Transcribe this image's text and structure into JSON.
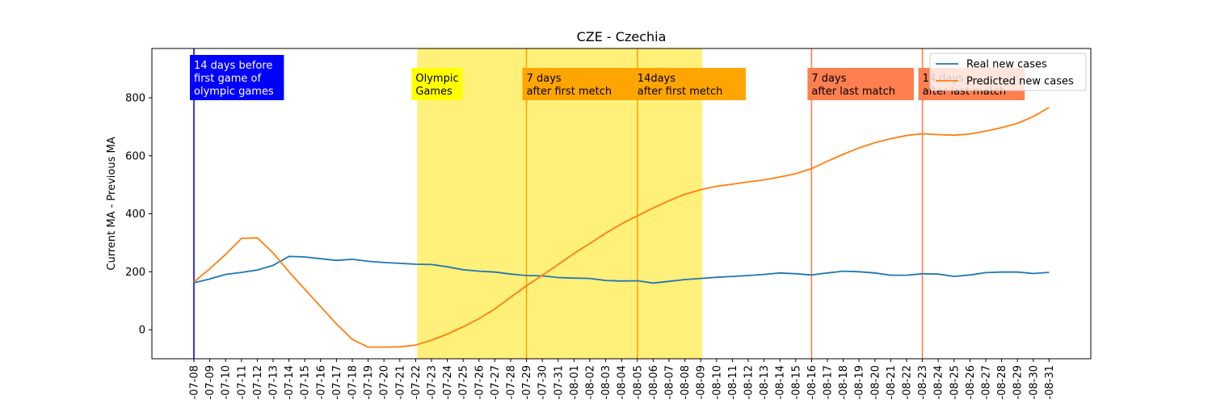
{
  "chart_data": {
    "type": "line",
    "title": "CZE - Czechia",
    "xlabel": "",
    "ylabel": "Current MA - Previous MA",
    "ylim": [
      -100,
      970
    ],
    "yticks": [
      0,
      200,
      400,
      600,
      800
    ],
    "legend_position": "top-right",
    "x": [
      "2021-07-08",
      "2021-07-09",
      "2021-07-10",
      "2021-07-11",
      "2021-07-12",
      "2021-07-13",
      "2021-07-14",
      "2021-07-15",
      "2021-07-16",
      "2021-07-17",
      "2021-07-18",
      "2021-07-19",
      "2021-07-20",
      "2021-07-21",
      "2021-07-22",
      "2021-07-23",
      "2021-07-24",
      "2021-07-25",
      "2021-07-26",
      "2021-07-27",
      "2021-07-28",
      "2021-07-29",
      "2021-07-30",
      "2021-07-31",
      "2021-08-01",
      "2021-08-02",
      "2021-08-03",
      "2021-08-04",
      "2021-08-05",
      "2021-08-06",
      "2021-08-07",
      "2021-08-08",
      "2021-08-09",
      "2021-08-10",
      "2021-08-11",
      "2021-08-12",
      "2021-08-13",
      "2021-08-14",
      "2021-08-15",
      "2021-08-16",
      "2021-08-17",
      "2021-08-18",
      "2021-08-19",
      "2021-08-20",
      "2021-08-21",
      "2021-08-22",
      "2021-08-23",
      "2021-08-24",
      "2021-08-25",
      "2021-08-26",
      "2021-08-27",
      "2021-08-28",
      "2021-08-29",
      "2021-08-30",
      "2021-08-31"
    ],
    "tick_labels": [
      "-07-08",
      "-07-09",
      "-07-10",
      "-07-11",
      "-07-12",
      "-07-13",
      "-07-14",
      "-07-15",
      "-07-16",
      "-07-17",
      "-07-18",
      "-07-19",
      "-07-20",
      "-07-21",
      "-07-22",
      "-07-23",
      "-07-24",
      "-07-25",
      "-07-26",
      "-07-27",
      "-07-28",
      "-07-29",
      "-07-30",
      "-07-31",
      "-08-01",
      "-08-02",
      "-08-03",
      "-08-04",
      "-08-05",
      "-08-06",
      "-08-07",
      "-08-08",
      "-08-09",
      "-08-10",
      "-08-11",
      "-08-12",
      "-08-13",
      "-08-14",
      "-08-15",
      "-08-16",
      "-08-17",
      "-08-18",
      "-08-19",
      "-08-20",
      "-08-21",
      "-08-22",
      "-08-23",
      "-08-24",
      "-08-25",
      "-08-26",
      "-08-27",
      "-08-28",
      "-08-29",
      "-08-30",
      "-08-31"
    ],
    "series": [
      {
        "name": "Real new cases",
        "color": "#1f77b4",
        "values": [
          162,
          175,
          191,
          198,
          206,
          222,
          253,
          251,
          245,
          239,
          243,
          236,
          232,
          229,
          226,
          225,
          217,
          207,
          202,
          199,
          192,
          187,
          186,
          180,
          178,
          177,
          170,
          168,
          169,
          161,
          167,
          173,
          177,
          181,
          184,
          187,
          191,
          196,
          193,
          189,
          196,
          202,
          200,
          196,
          188,
          188,
          193,
          192,
          184,
          189,
          197,
          199,
          199,
          194,
          198
        ]
      },
      {
        "name": "Predicted new cases",
        "color": "#ff7f0e",
        "values": [
          165,
          210,
          260,
          315,
          317,
          265,
          200,
          140,
          80,
          20,
          -33,
          -60,
          -60,
          -59,
          -53,
          -36,
          -15,
          10,
          38,
          72,
          112,
          152,
          188,
          225,
          263,
          298,
          333,
          365,
          393,
          420,
          445,
          467,
          483,
          495,
          502,
          510,
          517,
          527,
          538,
          556,
          581,
          605,
          627,
          645,
          659,
          670,
          676,
          673,
          671,
          675,
          685,
          697,
          712,
          735,
          767
        ]
      }
    ],
    "shaded_region": {
      "from": "2021-07-22",
      "to": "2021-08-09",
      "color": "#fff07a"
    },
    "events": [
      {
        "date": "2021-07-08",
        "color": "#0000ff",
        "label_lines": [
          "14 days before",
          "first game of",
          "olympic games"
        ],
        "box_color": "#0000ff",
        "text_color": "#ffffff"
      },
      {
        "date": "2021-07-22",
        "color": null,
        "label_lines": [
          "Olympic",
          "Games"
        ],
        "box_color": "#ffff00",
        "text_color": "#000000"
      },
      {
        "date": "2021-07-29",
        "color": "#ffa500",
        "label_lines": [
          "7 days",
          "after first metch"
        ],
        "box_color": "#ffa500",
        "text_color": "#000000"
      },
      {
        "date": "2021-08-05",
        "color": "#ffa500",
        "label_lines": [
          "14days",
          "after first metch"
        ],
        "box_color": "#ffa500",
        "text_color": "#000000"
      },
      {
        "date": "2021-08-16",
        "color": "#ff7f50",
        "label_lines": [
          "7 days",
          "after last match"
        ],
        "box_color": "#ff7f50",
        "text_color": "#000000"
      },
      {
        "date": "2021-08-23",
        "color": "#ff7f50",
        "label_lines": [
          "14 days",
          "after last match"
        ],
        "box_color": "#ff7f50",
        "text_color": "#000000"
      }
    ]
  }
}
